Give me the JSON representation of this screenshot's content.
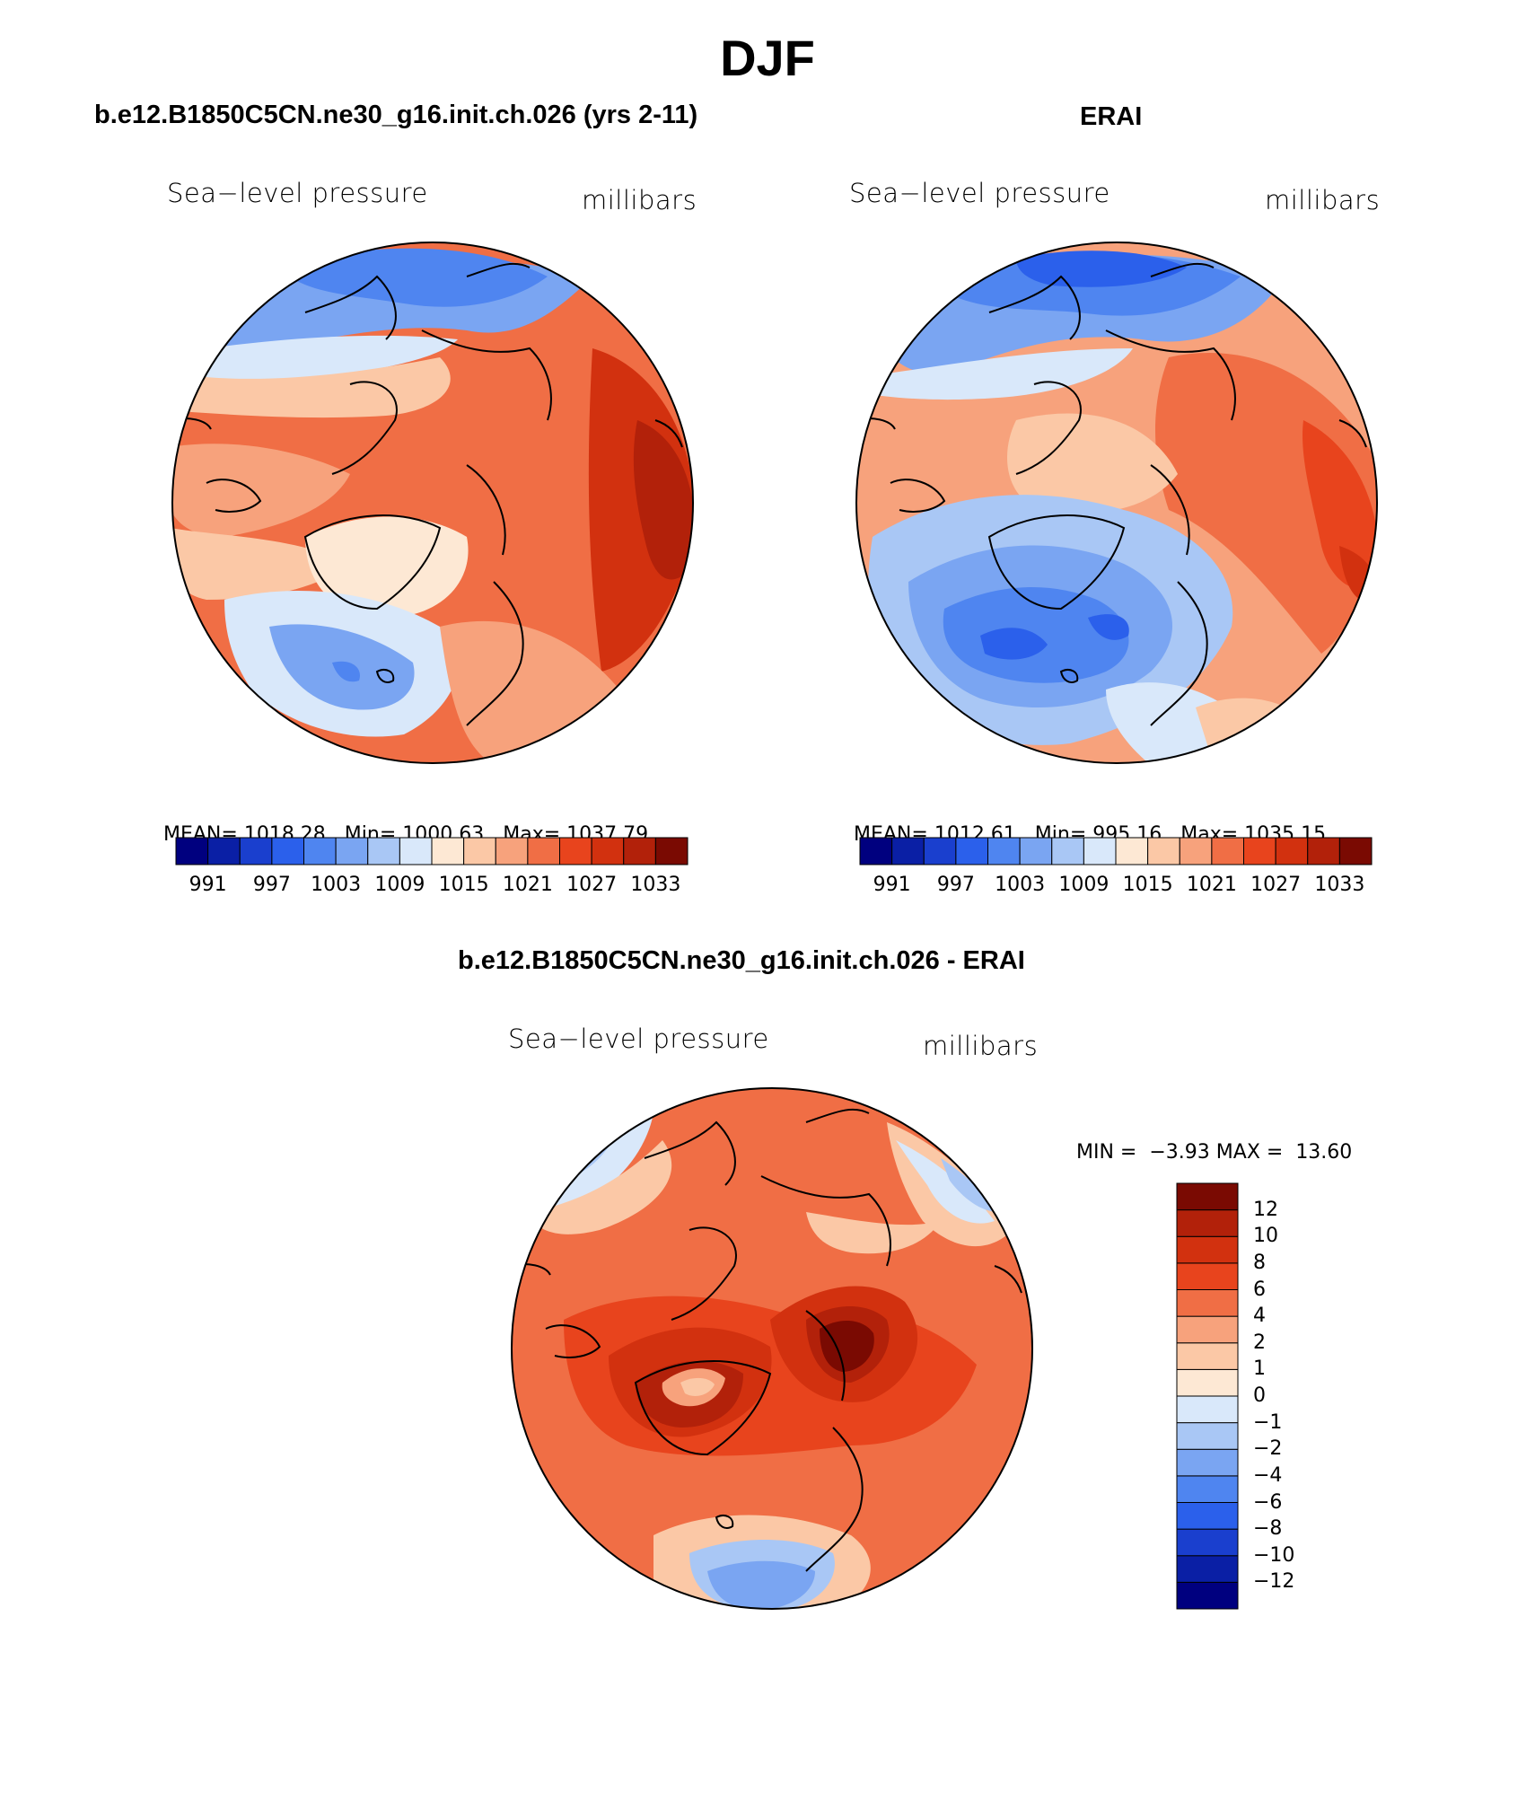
{
  "figure": {
    "title": "DJF",
    "panels": [
      {
        "id": "model",
        "title": "b.e12.B1850C5CN.ne30_g16.init.ch.026 (yrs 2-11)",
        "left_label": "Sea−level pressure",
        "right_label": "millibars",
        "stats": {
          "mean_label": "MEAN=",
          "mean": "1018.28",
          "min_label": "Min=",
          "min": "1000.63",
          "max_label": "Max=",
          "max": "1037.79"
        }
      },
      {
        "id": "obs",
        "title": "ERAI",
        "left_label": "Sea−level pressure",
        "right_label": "millibars",
        "stats": {
          "mean_label": "MEAN=",
          "mean": "1012.61",
          "min_label": "Min=",
          "min": "995.16",
          "max_label": "Max=",
          "max": "1035.15"
        }
      },
      {
        "id": "diff",
        "title": "b.e12.B1850C5CN.ne30_g16.init.ch.026 - ERAI",
        "left_label": "Sea−level pressure",
        "right_label": "millibars",
        "stats": {
          "min_label": "MIN =",
          "min": "−3.93",
          "max_label": "MAX =",
          "max": "13.60"
        }
      }
    ],
    "colorbar_abs": {
      "colors": [
        "#00007f",
        "#0a1fa5",
        "#1a3fce",
        "#2b60eb",
        "#4f85f0",
        "#7aa5f2",
        "#a9c7f5",
        "#d9e8fa",
        "#fde8d4",
        "#fbc8a6",
        "#f7a27c",
        "#f06e45",
        "#e8441d",
        "#d2310f",
        "#b2210a",
        "#7a0a02"
      ],
      "tick_labels": [
        "991",
        "997",
        "1003",
        "1009",
        "1015",
        "1021",
        "1027",
        "1033"
      ]
    },
    "colorbar_diff": {
      "colors": [
        "#00007f",
        "#0a1fa5",
        "#1a3fce",
        "#2b60eb",
        "#4f85f0",
        "#7aa5f2",
        "#a9c7f5",
        "#d9e8fa",
        "#fde8d4",
        "#fbc8a6",
        "#f7a27c",
        "#f06e45",
        "#e8441d",
        "#d2310f",
        "#b2210a",
        "#7a0a02"
      ],
      "tick_labels": [
        "−12",
        "−10",
        "−8",
        "−6",
        "−4",
        "−2",
        "−1",
        "0",
        "1",
        "2",
        "4",
        "6",
        "8",
        "10",
        "12"
      ]
    }
  }
}
